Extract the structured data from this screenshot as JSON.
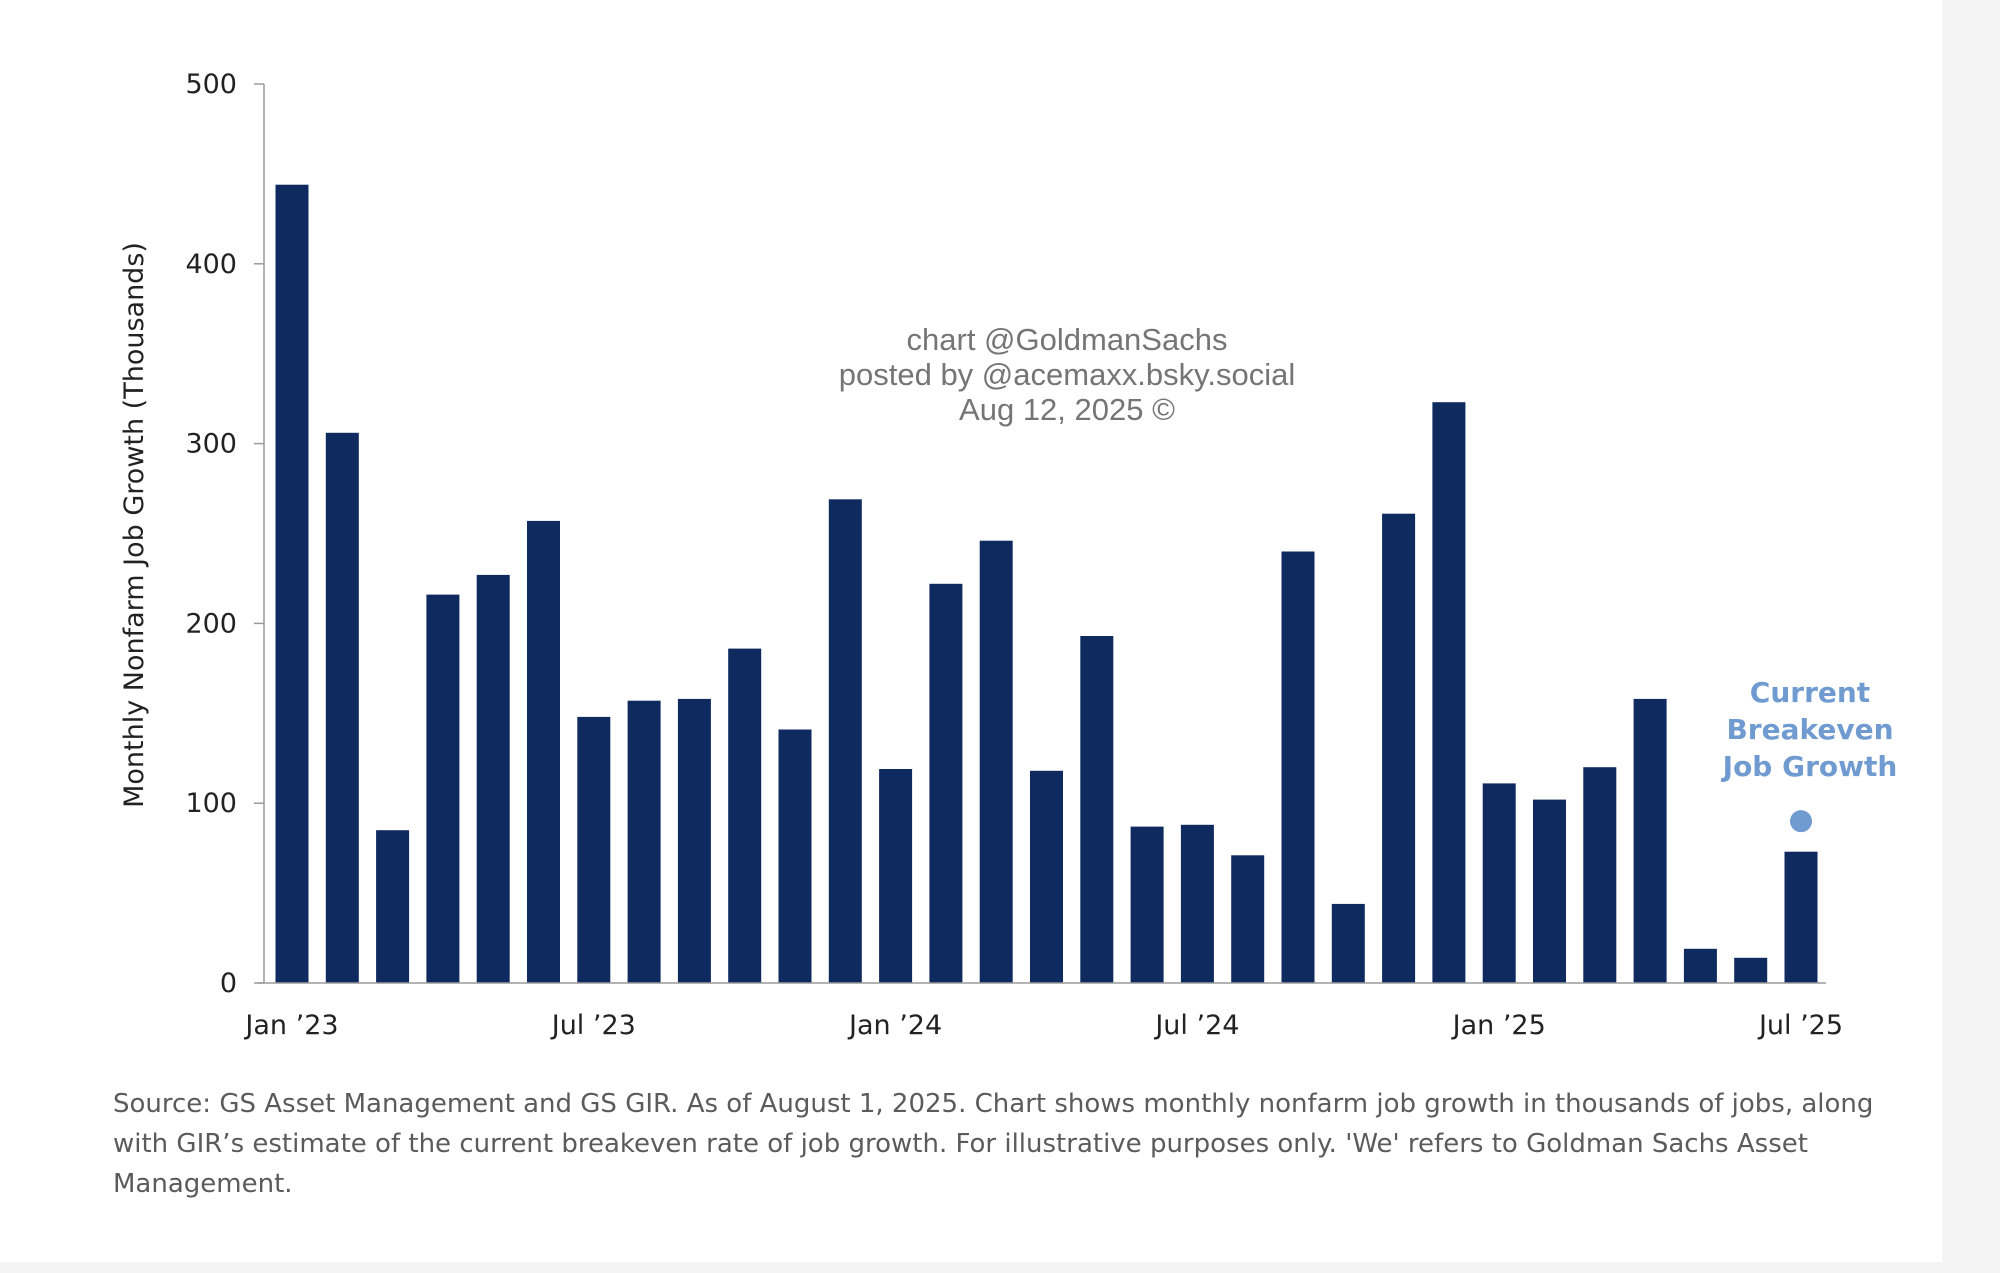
{
  "chart_data": {
    "type": "bar",
    "title": "",
    "ylabel": "Monthly Nonfarm Job Growth (Thousands)",
    "xlabel": "",
    "ylim": [
      0,
      500
    ],
    "yticks": [
      0,
      100,
      200,
      300,
      400,
      500
    ],
    "x_tick_labels": [
      {
        "index": 0,
        "label": "Jan ’23"
      },
      {
        "index": 6,
        "label": "Jul ’23"
      },
      {
        "index": 12,
        "label": "Jan ’24"
      },
      {
        "index": 18,
        "label": "Jul ’24"
      },
      {
        "index": 24,
        "label": "Jan ’25"
      },
      {
        "index": 30,
        "label": "Jul ’25"
      }
    ],
    "categories": [
      "Jan 2023",
      "Feb 2023",
      "Mar 2023",
      "Apr 2023",
      "May 2023",
      "Jun 2023",
      "Jul 2023",
      "Aug 2023",
      "Sep 2023",
      "Oct 2023",
      "Nov 2023",
      "Dec 2023",
      "Jan 2024",
      "Feb 2024",
      "Mar 2024",
      "Apr 2024",
      "May 2024",
      "Jun 2024",
      "Jul 2024",
      "Aug 2024",
      "Sep 2024",
      "Oct 2024",
      "Nov 2024",
      "Dec 2024",
      "Jan 2025",
      "Feb 2025",
      "Mar 2025",
      "Apr 2025",
      "May 2025",
      "Jun 2025",
      "Jul 2025"
    ],
    "values": [
      444,
      306,
      85,
      216,
      227,
      257,
      148,
      157,
      158,
      186,
      141,
      269,
      119,
      222,
      246,
      118,
      193,
      87,
      88,
      71,
      240,
      44,
      261,
      323,
      111,
      102,
      120,
      158,
      19,
      14,
      73
    ],
    "bar_color": "#0e2a5f",
    "breakeven": {
      "label_lines": [
        "Current",
        "Breakeven",
        "Job Growth"
      ],
      "value": 90,
      "x_index": 30,
      "color": "#6f9bd1"
    },
    "grid": false,
    "legend": "none"
  },
  "watermark": {
    "line1": "chart @GoldmanSachs",
    "line2": "posted by @acemaxx.bsky.social",
    "line3": "Aug 12, 2025 ©"
  },
  "source_note": "Source: GS Asset Management and GS GIR. As of August 1, 2025. Chart shows monthly nonfarm job growth in thousands of jobs, along with GIR’s estimate of the current breakeven rate of job growth. For illustrative purposes only. 'We' refers to Goldman Sachs Asset Management."
}
